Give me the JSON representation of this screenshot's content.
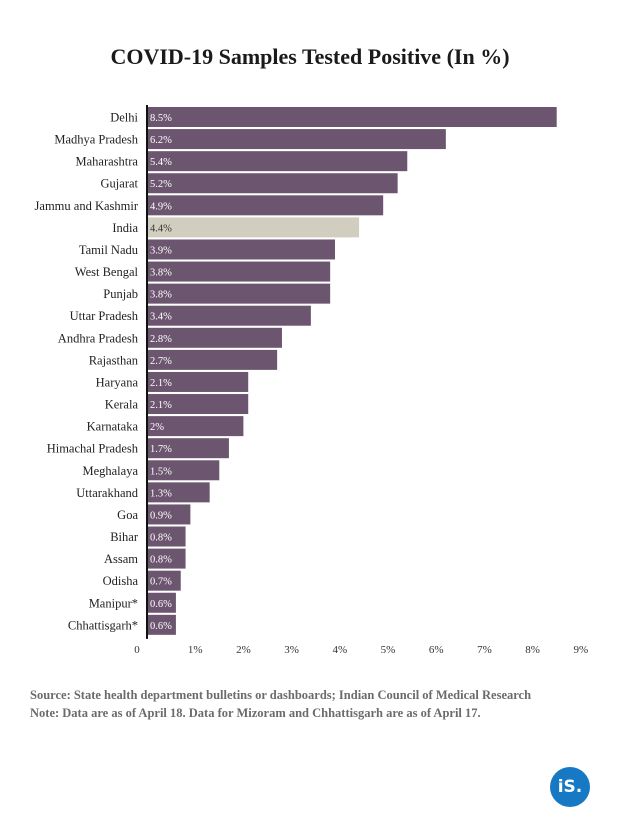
{
  "chart_data": {
    "type": "bar",
    "orientation": "horizontal",
    "title": "COVID-19 Samples Tested Positive (In %)",
    "xlabel": "",
    "ylabel": "",
    "xlim": [
      0,
      9
    ],
    "x_ticks": [
      "0",
      "1%",
      "2%",
      "3%",
      "4%",
      "5%",
      "6%",
      "7%",
      "8%",
      "9%"
    ],
    "colors": {
      "default": "#6c566f",
      "highlight": "#d2cebf",
      "label": "#ffffff"
    },
    "highlight_category": "India",
    "categories": [
      "Delhi",
      "Madhya Pradesh",
      "Maharashtra",
      "Gujarat",
      "Jammu and Kashmir",
      "India",
      "Tamil Nadu",
      "West Bengal",
      "Punjab",
      "Uttar Pradesh",
      "Andhra Pradesh",
      "Rajasthan",
      "Haryana",
      "Kerala",
      "Karnataka",
      "Himachal Pradesh",
      "Meghalaya",
      "Uttarakhand",
      "Goa",
      "Bihar",
      "Assam",
      "Odisha",
      "Manipur*",
      "Chhattisgarh*"
    ],
    "values": [
      8.5,
      6.2,
      5.4,
      5.2,
      4.9,
      4.4,
      3.9,
      3.8,
      3.8,
      3.4,
      2.8,
      2.7,
      2.1,
      2.1,
      2.0,
      1.7,
      1.5,
      1.3,
      0.9,
      0.8,
      0.8,
      0.7,
      0.6,
      0.6
    ],
    "value_labels": [
      "8.5%",
      "6.2%",
      "5.4%",
      "5.2%",
      "4.9%",
      "4.4%",
      "3.9%",
      "3.8%",
      "3.8%",
      "3.4%",
      "2.8%",
      "2.7%",
      "2.1%",
      "2.1%",
      "2%",
      "1.7%",
      "1.5%",
      "1.3%",
      "0.9%",
      "0.8%",
      "0.8%",
      "0.7%",
      "0.6%",
      "0.6%"
    ]
  },
  "footer": {
    "source": "Source: State health department bulletins or dashboards; Indian Council of Medical Research",
    "note": "Note: Data are as of April 18. Data for Mizoram and Chhattisgarh are as of April 17."
  },
  "logo": {
    "text": "iS."
  }
}
